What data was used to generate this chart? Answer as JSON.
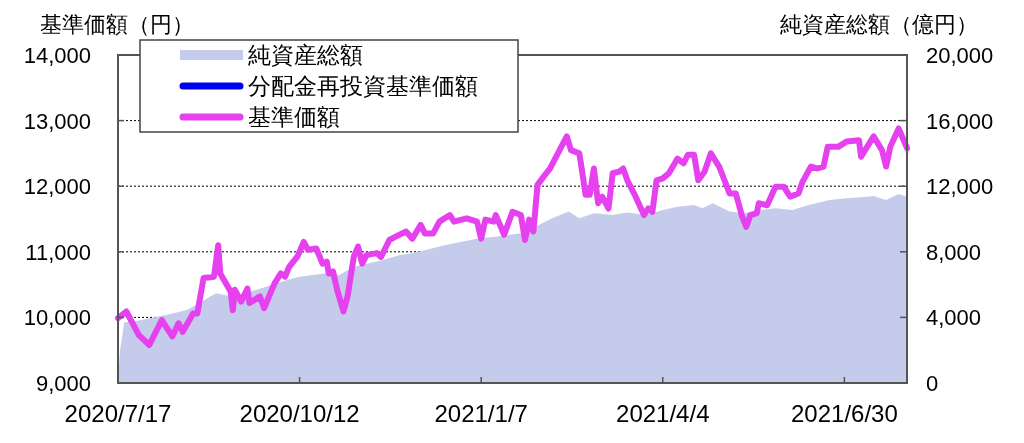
{
  "chart_data": {
    "type": "line",
    "ylabel": "基準価額（円）",
    "y2label": "純資産総額（億円）",
    "xlim": [
      "2020-07-17",
      "2021-07-30"
    ],
    "xticks": [
      {
        "value": "2020-07-17",
        "label": "2020/7/17"
      },
      {
        "value": "2020-10-12",
        "label": "2020/10/12"
      },
      {
        "value": "2021-01-07",
        "label": "2021/1/7"
      },
      {
        "value": "2021-04-04",
        "label": "2021/4/4"
      },
      {
        "value": "2021-06-30",
        "label": "2021/6/30"
      }
    ],
    "ylim": [
      9000,
      14000
    ],
    "yticks": [
      {
        "value": 9000,
        "label": "9,000"
      },
      {
        "value": 10000,
        "label": "10,000"
      },
      {
        "value": 11000,
        "label": "11,000"
      },
      {
        "value": 12000,
        "label": "12,000"
      },
      {
        "value": 13000,
        "label": "13,000"
      },
      {
        "value": 14000,
        "label": "14,000"
      }
    ],
    "y2lim": [
      0,
      20000
    ],
    "y2ticks": [
      0,
      {
        "value": 4000,
        "label": "4,000"
      },
      {
        "value": 8000,
        "label": "8,000"
      },
      {
        "value": 12000,
        "label": "12,000"
      },
      {
        "value": 16000,
        "label": "16,000"
      },
      {
        "value": 20000,
        "label": "20,000"
      }
    ],
    "grid": "y",
    "legend": "top left",
    "line_style": "solid",
    "series": [
      {
        "name": "純資産総額",
        "type": "area",
        "axis": "y2",
        "color": "#c5cbea",
        "x": [
          "2020-07-17",
          "2020-07-18",
          "2020-07-20",
          "2020-07-24",
          "2020-08-09",
          "2020-08-19",
          "2020-08-25",
          "2020-08-30",
          "2020-09-02",
          "2020-09-10",
          "2020-09-26",
          "2020-10-06",
          "2020-10-12",
          "2020-10-25",
          "2020-10-31",
          "2020-11-07",
          "2020-11-21",
          "2020-11-29",
          "2020-12-05",
          "2020-12-21",
          "2021-01-06",
          "2021-01-14",
          "2021-01-26",
          "2021-02-02",
          "2021-02-10",
          "2021-02-18",
          "2021-02-23",
          "2021-03-02",
          "2021-03-11",
          "2021-03-18",
          "2021-03-27",
          "2021-04-04",
          "2021-04-11",
          "2021-04-19",
          "2021-04-23",
          "2021-04-28",
          "2021-05-06",
          "2021-05-13",
          "2021-05-20",
          "2021-05-28",
          "2021-06-05",
          "2021-06-13",
          "2021-06-23",
          "2021-07-01",
          "2021-07-11",
          "2021-07-14",
          "2021-07-20",
          "2021-07-26",
          "2021-07-30"
        ],
        "values": [
          300,
          2000,
          3700,
          3740,
          4150,
          4450,
          4860,
          5260,
          5470,
          5260,
          5870,
          6280,
          6480,
          6690,
          6580,
          7090,
          7500,
          7800,
          7910,
          8420,
          8820,
          8920,
          9130,
          9530,
          10040,
          10450,
          10040,
          10350,
          10250,
          10390,
          10250,
          10550,
          10750,
          10860,
          10650,
          10960,
          10450,
          10350,
          10550,
          10650,
          10550,
          10860,
          11160,
          11260,
          11360,
          11400,
          11160,
          11530,
          11360
        ]
      },
      {
        "name": "分配金再投資基準価額",
        "color": "#0000ee"
      },
      {
        "name": "基準価額",
        "color": "#e641ef",
        "x": [
          "2020-07-17",
          "2020-07-21",
          "2020-07-27",
          "2020-08-01",
          "2020-08-07",
          "2020-08-12",
          "2020-08-15",
          "2020-08-17",
          "2020-08-22",
          "2020-08-24",
          "2020-08-27",
          "2020-09-01",
          "2020-09-03",
          "2020-09-04",
          "2020-09-09",
          "2020-09-10",
          "2020-09-11",
          "2020-09-14",
          "2020-09-17",
          "2020-09-18",
          "2020-09-23",
          "2020-09-25",
          "2020-09-30",
          "2020-10-03",
          "2020-10-05",
          "2020-10-07",
          "2020-10-11",
          "2020-10-14",
          "2020-10-16",
          "2020-10-20",
          "2020-10-23",
          "2020-10-25",
          "2020-10-26",
          "2020-10-28",
          "2020-10-30",
          "2020-11-02",
          "2020-11-04",
          "2020-11-07",
          "2020-11-09",
          "2020-11-11",
          "2020-11-13",
          "2020-11-18",
          "2020-11-20",
          "2020-11-24",
          "2020-11-27",
          "2020-12-02",
          "2020-12-05",
          "2020-12-09",
          "2020-12-11",
          "2020-12-15",
          "2020-12-18",
          "2020-12-23",
          "2020-12-25",
          "2020-12-31",
          "2021-01-05",
          "2021-01-07",
          "2021-01-09",
          "2021-01-13",
          "2021-01-14",
          "2021-01-18",
          "2021-01-22",
          "2021-01-26",
          "2021-01-28",
          "2021-01-30",
          "2021-02-01",
          "2021-02-03",
          "2021-02-06",
          "2021-02-09",
          "2021-02-17",
          "2021-02-19",
          "2021-02-23",
          "2021-02-24",
          "2021-02-26",
          "2021-02-28",
          "2021-03-02",
          "2021-03-04",
          "2021-03-06",
          "2021-03-09",
          "2021-03-11",
          "2021-03-14",
          "2021-03-16",
          "2021-03-18",
          "2021-03-22",
          "2021-03-26",
          "2021-03-28",
          "2021-03-30",
          "2021-04-01",
          "2021-04-04",
          "2021-04-07",
          "2021-04-11",
          "2021-04-14",
          "2021-04-16",
          "2021-04-19",
          "2021-04-21",
          "2021-04-24",
          "2021-04-27",
          "2021-05-01",
          "2021-05-06",
          "2021-05-09",
          "2021-05-12",
          "2021-05-14",
          "2021-05-16",
          "2021-05-19",
          "2021-05-20",
          "2021-05-24",
          "2021-05-28",
          "2021-06-01",
          "2021-06-04",
          "2021-06-08",
          "2021-06-10",
          "2021-06-14",
          "2021-06-17",
          "2021-06-20",
          "2021-06-22",
          "2021-06-27",
          "2021-07-01",
          "2021-07-07",
          "2021-07-08",
          "2021-07-14",
          "2021-07-18",
          "2021-07-20",
          "2021-07-22",
          "2021-07-26",
          "2021-07-30"
        ],
        "values": [
          9990,
          10090,
          9730,
          9580,
          9960,
          9710,
          9910,
          9780,
          10060,
          10060,
          10600,
          10620,
          11100,
          10670,
          10390,
          10110,
          10420,
          10240,
          10440,
          10220,
          10320,
          10140,
          10520,
          10670,
          10620,
          10770,
          10930,
          11150,
          11030,
          11050,
          10820,
          10850,
          10670,
          10700,
          10420,
          10090,
          10320,
          10930,
          11080,
          10820,
          10950,
          10980,
          10920,
          11180,
          11230,
          11310,
          11200,
          11410,
          11280,
          11280,
          11460,
          11560,
          11460,
          11510,
          11460,
          11200,
          11490,
          11460,
          11560,
          11260,
          11610,
          11560,
          11180,
          11490,
          11310,
          12020,
          12150,
          12270,
          12760,
          12550,
          12500,
          12300,
          11870,
          11870,
          12270,
          11740,
          11840,
          11660,
          12200,
          12220,
          12270,
          12090,
          11840,
          11560,
          11660,
          11610,
          12090,
          12120,
          12200,
          12420,
          12350,
          12480,
          12480,
          12090,
          12220,
          12500,
          12300,
          11890,
          11890,
          11540,
          11380,
          11560,
          11590,
          11740,
          11710,
          11990,
          11990,
          11840,
          11890,
          12070,
          12300,
          12270,
          12300,
          12600,
          12600,
          12680,
          12700,
          12450,
          12760,
          12550,
          12300,
          12600,
          12880,
          12580
        ]
      }
    ]
  }
}
